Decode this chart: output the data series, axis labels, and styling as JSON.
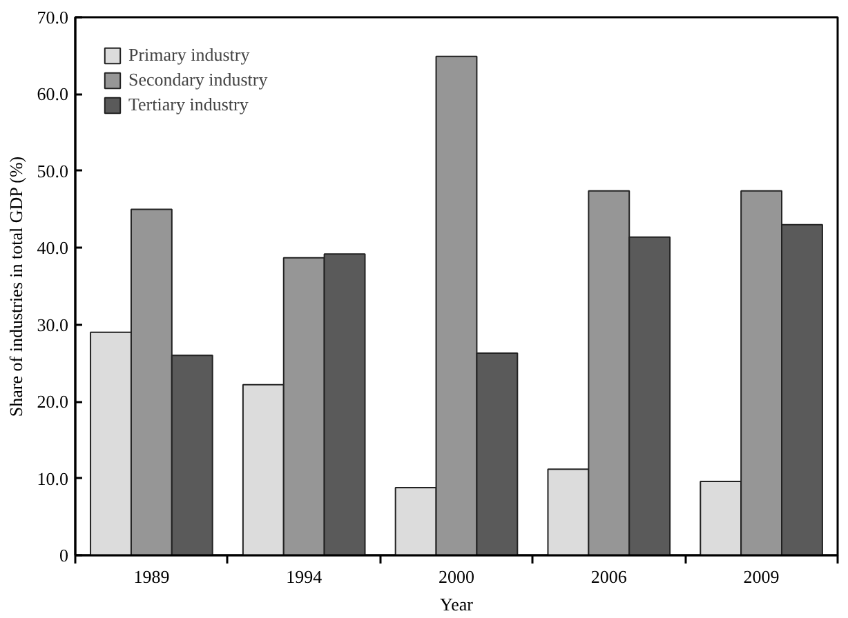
{
  "chart_data": {
    "type": "bar",
    "xlabel": "Year",
    "ylabel": "Share of industries in total GDP (%)",
    "categories": [
      "1989",
      "1994",
      "2000",
      "2006",
      "2009"
    ],
    "series": [
      {
        "name": "Primary industry",
        "color": "#dcdcdc",
        "values": [
          29.0,
          22.2,
          8.8,
          11.2,
          9.6
        ]
      },
      {
        "name": "Secondary industry",
        "color": "#969696",
        "values": [
          45.0,
          38.7,
          64.9,
          47.4,
          47.4
        ]
      },
      {
        "name": "Tertiary industry",
        "color": "#5a5a5a",
        "values": [
          26.0,
          39.2,
          26.3,
          41.4,
          43.0
        ]
      }
    ],
    "ylim": [
      0,
      70
    ],
    "yticks": [
      0,
      {
        "value": 10,
        "label": "10.0"
      },
      {
        "value": 20,
        "label": "20.0"
      },
      {
        "value": 30,
        "label": "30.0"
      },
      {
        "value": 40,
        "label": "40.0"
      },
      {
        "value": 50,
        "label": "50.0"
      },
      {
        "value": 60,
        "label": "60.0"
      },
      {
        "value": 70,
        "label": "70.0"
      }
    ],
    "grid": false,
    "legend": "top left"
  }
}
